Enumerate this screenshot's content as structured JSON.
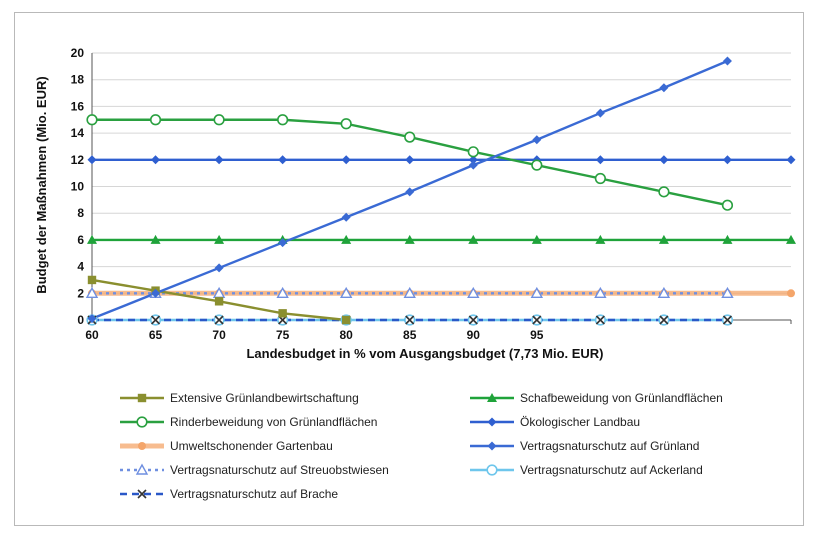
{
  "chart_data": {
    "type": "line",
    "xlabel": "Landesbudget in % vom Ausgangsbudget (7,73 Mio. EUR)",
    "ylabel": "Budget der Maßnahmen (Mio. EUR)",
    "ylim": [
      0,
      20
    ],
    "yticks": [
      0,
      2,
      4,
      6,
      8,
      10,
      12,
      14,
      16,
      18,
      20
    ],
    "x_tick_labels": [
      "60",
      "65",
      "70",
      "75",
      "80",
      "85",
      "90",
      "95",
      "",
      "",
      "",
      ""
    ],
    "x_positions": [
      60,
      65,
      70,
      75,
      80,
      85,
      90,
      95,
      100,
      105,
      110,
      115
    ],
    "grid": "horizontal",
    "legend_placement": "bottom",
    "series": [
      {
        "name": "Extensive Grünlandbewirtschaftung",
        "color": "#8a8f2f",
        "marker": "square",
        "dashed": false,
        "values": [
          3.0,
          2.2,
          1.4,
          0.5,
          0.0,
          null,
          null,
          null,
          null,
          null,
          null,
          null
        ]
      },
      {
        "name": "Schafbeweidung von Grünlandflächen",
        "color": "#1fa33a",
        "marker": "triangle",
        "dashed": false,
        "values": [
          6,
          6,
          6,
          6,
          6,
          6,
          6,
          6,
          6,
          6,
          6,
          6
        ]
      },
      {
        "name": "Rinderbeweidung von Grünlandflächen",
        "color": "#2aa040",
        "marker": "circle-open",
        "dashed": false,
        "values": [
          15,
          15,
          15,
          15,
          14.7,
          13.7,
          12.6,
          11.6,
          10.6,
          9.6,
          8.6,
          null
        ]
      },
      {
        "name": "Ökologischer Landbau",
        "color": "#2f5fd0",
        "marker": "diamond",
        "dashed": false,
        "values": [
          12,
          12,
          12,
          12,
          12,
          12,
          12,
          12,
          12,
          12,
          12,
          12
        ]
      },
      {
        "name": "Umweltschonender Gartenbau",
        "color": "#f4a56a",
        "marker": "circle",
        "dashed": false,
        "values": [
          2,
          2,
          2,
          2,
          2,
          2,
          2,
          2,
          2,
          2,
          2,
          2
        ]
      },
      {
        "name": "Vertragsnaturschutz auf Grünland",
        "color": "#3a6ad4",
        "marker": "diamond",
        "dashed": false,
        "values": [
          0.1,
          2.0,
          3.9,
          5.8,
          7.7,
          9.6,
          11.6,
          13.5,
          15.5,
          17.4,
          19.4,
          null
        ]
      },
      {
        "name": "Vertragsnaturschutz auf Streuobstwiesen",
        "color": "#6f8fe0",
        "marker": "triangle-open",
        "dashed": true,
        "values": [
          2,
          2,
          2,
          2,
          2,
          2,
          2,
          2,
          2,
          2,
          2,
          null
        ]
      },
      {
        "name": "Vertragsnaturschutz auf Ackerland",
        "color": "#6ec6ec",
        "marker": "circle-open",
        "dashed": false,
        "values": [
          0,
          0,
          0,
          0,
          0,
          0,
          0,
          0,
          0,
          0,
          0,
          null
        ]
      },
      {
        "name": "Vertragsnaturschutz auf Brache",
        "color": "#2a58c8",
        "marker": "x",
        "dashed": true,
        "values": [
          0,
          0,
          0,
          0,
          0,
          0,
          0,
          0,
          0,
          0,
          0,
          null
        ]
      }
    ]
  }
}
